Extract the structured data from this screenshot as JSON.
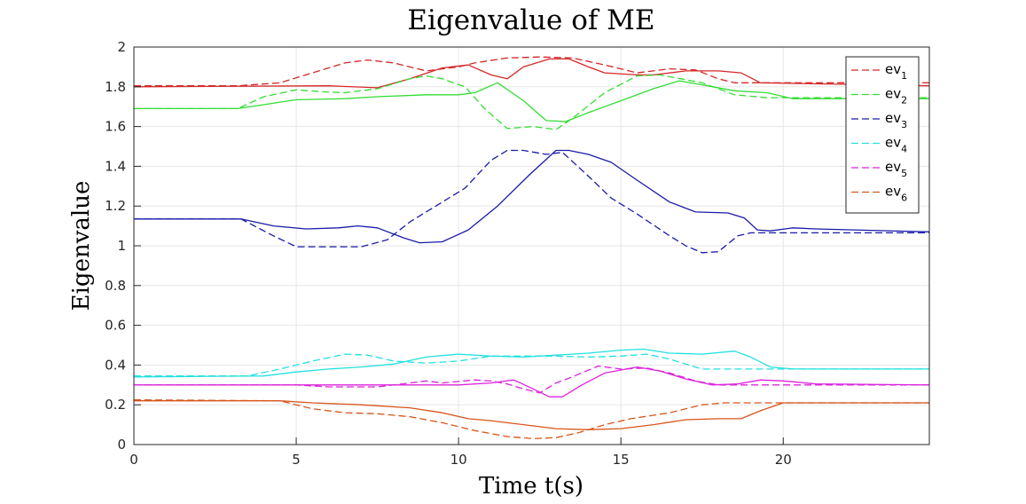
{
  "chart_data": {
    "type": "line",
    "title": "Eigenvalue of ME",
    "xlabel": "Time t(s)",
    "ylabel": "Eigenvalue",
    "xlim": [
      0,
      24.5
    ],
    "ylim": [
      0,
      2
    ],
    "xticks": [
      0,
      5,
      10,
      15,
      20
    ],
    "xtick_labels": [
      "0",
      "5",
      "10",
      "15",
      "20"
    ],
    "yticks": [
      0,
      0.2,
      0.4,
      0.6,
      0.8,
      1,
      1.2,
      1.4,
      1.6,
      1.8,
      2
    ],
    "ytick_labels": [
      "0",
      "0.2",
      "0.4",
      "0.6",
      "0.8",
      "1",
      "1.2",
      "1.4",
      "1.6",
      "1.8",
      "2"
    ],
    "grid": true,
    "legend_position": "top-right",
    "legend": [
      {
        "base": "ev",
        "sub": "1",
        "color": "#d62728"
      },
      {
        "base": "ev",
        "sub": "2",
        "color": "#33dd33"
      },
      {
        "base": "ev",
        "sub": "3",
        "color": "#1a1aaa"
      },
      {
        "base": "ev",
        "sub": "4",
        "color": "#22e0e0"
      },
      {
        "base": "ev",
        "sub": "5",
        "color": "#dd22dd"
      },
      {
        "base": "ev",
        "sub": "6",
        "color": "#d9541a"
      }
    ],
    "series": [
      {
        "legend_index": 0,
        "style": "dashed",
        "color": "#d62728",
        "points": [
          [
            0,
            1.805
          ],
          [
            3.2,
            1.805
          ],
          [
            4.5,
            1.82
          ],
          [
            5.5,
            1.87
          ],
          [
            6.5,
            1.92
          ],
          [
            7.2,
            1.935
          ],
          [
            8,
            1.92
          ],
          [
            9,
            1.88
          ],
          [
            10,
            1.9
          ],
          [
            10.5,
            1.92
          ],
          [
            11.5,
            1.945
          ],
          [
            12.5,
            1.95
          ],
          [
            13.5,
            1.945
          ],
          [
            14.5,
            1.91
          ],
          [
            15.5,
            1.87
          ],
          [
            16.5,
            1.89
          ],
          [
            17.3,
            1.885
          ],
          [
            18,
            1.84
          ],
          [
            18.5,
            1.82
          ],
          [
            24.5,
            1.82
          ]
        ]
      },
      {
        "legend_index": null,
        "style": "solid",
        "color": "#d62728",
        "points": [
          [
            0,
            1.8
          ],
          [
            6,
            1.805
          ],
          [
            7.5,
            1.795
          ],
          [
            8.5,
            1.84
          ],
          [
            9.5,
            1.895
          ],
          [
            10.3,
            1.91
          ],
          [
            11,
            1.86
          ],
          [
            11.5,
            1.84
          ],
          [
            12,
            1.9
          ],
          [
            12.8,
            1.94
          ],
          [
            13.4,
            1.94
          ],
          [
            14,
            1.9
          ],
          [
            14.5,
            1.87
          ],
          [
            15.5,
            1.86
          ],
          [
            16,
            1.86
          ],
          [
            17,
            1.88
          ],
          [
            18,
            1.88
          ],
          [
            18.7,
            1.87
          ],
          [
            19.3,
            1.82
          ],
          [
            24.5,
            1.805
          ]
        ]
      },
      {
        "legend_index": 1,
        "style": "dashed",
        "color": "#33dd33",
        "points": [
          [
            0,
            1.69
          ],
          [
            3.2,
            1.69
          ],
          [
            4,
            1.75
          ],
          [
            5,
            1.785
          ],
          [
            5.8,
            1.775
          ],
          [
            6.5,
            1.77
          ],
          [
            7.5,
            1.79
          ],
          [
            8.5,
            1.84
          ],
          [
            9,
            1.855
          ],
          [
            9.5,
            1.84
          ],
          [
            10.2,
            1.8
          ],
          [
            10.8,
            1.69
          ],
          [
            11.5,
            1.59
          ],
          [
            12.3,
            1.6
          ],
          [
            13,
            1.585
          ],
          [
            13.5,
            1.64
          ],
          [
            14.5,
            1.77
          ],
          [
            15.5,
            1.855
          ],
          [
            16.2,
            1.86
          ],
          [
            17.5,
            1.82
          ],
          [
            18.5,
            1.76
          ],
          [
            19.5,
            1.745
          ],
          [
            24.5,
            1.745
          ]
        ]
      },
      {
        "legend_index": null,
        "style": "solid",
        "color": "#33dd33",
        "points": [
          [
            0,
            1.69
          ],
          [
            3.2,
            1.69
          ],
          [
            5,
            1.735
          ],
          [
            6.5,
            1.74
          ],
          [
            7.5,
            1.75
          ],
          [
            9,
            1.76
          ],
          [
            10,
            1.76
          ],
          [
            10.5,
            1.77
          ],
          [
            11.2,
            1.82
          ],
          [
            12,
            1.73
          ],
          [
            12.7,
            1.63
          ],
          [
            13.3,
            1.625
          ],
          [
            14,
            1.67
          ],
          [
            15,
            1.73
          ],
          [
            16,
            1.79
          ],
          [
            16.8,
            1.83
          ],
          [
            17.5,
            1.81
          ],
          [
            18.5,
            1.78
          ],
          [
            19.5,
            1.77
          ],
          [
            20.3,
            1.74
          ],
          [
            24.5,
            1.74
          ]
        ]
      },
      {
        "legend_index": 2,
        "style": "dashed",
        "color": "#1a1aaa",
        "points": [
          [
            0,
            1.135
          ],
          [
            3.3,
            1.135
          ],
          [
            4.3,
            1.05
          ],
          [
            5,
            0.995
          ],
          [
            6,
            0.995
          ],
          [
            7,
            0.995
          ],
          [
            7.8,
            1.03
          ],
          [
            8.5,
            1.12
          ],
          [
            9.3,
            1.2
          ],
          [
            10.2,
            1.29
          ],
          [
            11,
            1.43
          ],
          [
            11.5,
            1.48
          ],
          [
            12,
            1.48
          ],
          [
            12.7,
            1.46
          ],
          [
            13.2,
            1.47
          ],
          [
            14,
            1.35
          ],
          [
            14.7,
            1.24
          ],
          [
            15.5,
            1.16
          ],
          [
            16.5,
            1.05
          ],
          [
            17,
            1.0
          ],
          [
            17.5,
            0.965
          ],
          [
            18,
            0.97
          ],
          [
            18.6,
            1.05
          ],
          [
            19,
            1.065
          ],
          [
            24.5,
            1.065
          ]
        ]
      },
      {
        "legend_index": null,
        "style": "solid",
        "color": "#1a1aaa",
        "points": [
          [
            0,
            1.135
          ],
          [
            3.3,
            1.135
          ],
          [
            4.3,
            1.1
          ],
          [
            5.3,
            1.085
          ],
          [
            6.3,
            1.09
          ],
          [
            6.9,
            1.1
          ],
          [
            7.5,
            1.09
          ],
          [
            8.3,
            1.04
          ],
          [
            8.8,
            1.015
          ],
          [
            9.5,
            1.02
          ],
          [
            10.3,
            1.08
          ],
          [
            11.2,
            1.2
          ],
          [
            12.2,
            1.36
          ],
          [
            13,
            1.48
          ],
          [
            13.4,
            1.48
          ],
          [
            14,
            1.46
          ],
          [
            14.7,
            1.42
          ],
          [
            15.5,
            1.33
          ],
          [
            16.5,
            1.22
          ],
          [
            17.3,
            1.17
          ],
          [
            18.3,
            1.165
          ],
          [
            18.8,
            1.14
          ],
          [
            19.2,
            1.08
          ],
          [
            19.6,
            1.075
          ],
          [
            20.3,
            1.09
          ],
          [
            21,
            1.085
          ],
          [
            24.5,
            1.07
          ]
        ]
      },
      {
        "legend_index": 3,
        "style": "dashed",
        "color": "#22e0e0",
        "points": [
          [
            0,
            0.345
          ],
          [
            3.5,
            0.345
          ],
          [
            4.5,
            0.38
          ],
          [
            5.5,
            0.42
          ],
          [
            6.5,
            0.455
          ],
          [
            7.2,
            0.45
          ],
          [
            8,
            0.42
          ],
          [
            9,
            0.41
          ],
          [
            10,
            0.42
          ],
          [
            11,
            0.445
          ],
          [
            12,
            0.445
          ],
          [
            13,
            0.445
          ],
          [
            14,
            0.44
          ],
          [
            15,
            0.445
          ],
          [
            15.8,
            0.455
          ],
          [
            16.5,
            0.43
          ],
          [
            17.5,
            0.38
          ],
          [
            18.5,
            0.38
          ],
          [
            24.5,
            0.38
          ]
        ]
      },
      {
        "legend_index": null,
        "style": "solid",
        "color": "#22e0e0",
        "points": [
          [
            0,
            0.34
          ],
          [
            4,
            0.345
          ],
          [
            5,
            0.365
          ],
          [
            6,
            0.38
          ],
          [
            7,
            0.39
          ],
          [
            8,
            0.405
          ],
          [
            9,
            0.44
          ],
          [
            10,
            0.455
          ],
          [
            11,
            0.445
          ],
          [
            12,
            0.44
          ],
          [
            13,
            0.45
          ],
          [
            14,
            0.46
          ],
          [
            15,
            0.475
          ],
          [
            15.7,
            0.48
          ],
          [
            16.5,
            0.46
          ],
          [
            17.5,
            0.455
          ],
          [
            18.5,
            0.47
          ],
          [
            19,
            0.44
          ],
          [
            19.6,
            0.39
          ],
          [
            20.3,
            0.38
          ],
          [
            24.5,
            0.38
          ]
        ]
      },
      {
        "legend_index": 4,
        "style": "dashed",
        "color": "#dd22dd",
        "points": [
          [
            0,
            0.3
          ],
          [
            5,
            0.3
          ],
          [
            6,
            0.29
          ],
          [
            7.5,
            0.29
          ],
          [
            8.5,
            0.31
          ],
          [
            9,
            0.32
          ],
          [
            9.5,
            0.31
          ],
          [
            10.5,
            0.325
          ],
          [
            11,
            0.32
          ],
          [
            11.5,
            0.305
          ],
          [
            12,
            0.28
          ],
          [
            12.5,
            0.26
          ],
          [
            13,
            0.31
          ],
          [
            13.5,
            0.34
          ],
          [
            14.3,
            0.395
          ],
          [
            15,
            0.38
          ],
          [
            15.8,
            0.385
          ],
          [
            16.5,
            0.36
          ],
          [
            17.3,
            0.32
          ],
          [
            18,
            0.3
          ],
          [
            24.5,
            0.3
          ]
        ]
      },
      {
        "legend_index": null,
        "style": "solid",
        "color": "#dd22dd",
        "points": [
          [
            0,
            0.3
          ],
          [
            10,
            0.3
          ],
          [
            11,
            0.31
          ],
          [
            11.7,
            0.325
          ],
          [
            12.3,
            0.28
          ],
          [
            12.8,
            0.24
          ],
          [
            13.2,
            0.24
          ],
          [
            13.8,
            0.3
          ],
          [
            14.5,
            0.36
          ],
          [
            15.5,
            0.39
          ],
          [
            16.2,
            0.37
          ],
          [
            17,
            0.33
          ],
          [
            17.8,
            0.3
          ],
          [
            18.6,
            0.305
          ],
          [
            19.3,
            0.325
          ],
          [
            20,
            0.32
          ],
          [
            21,
            0.305
          ],
          [
            24.5,
            0.3
          ]
        ]
      },
      {
        "legend_index": 5,
        "style": "dashed",
        "color": "#d9541a",
        "points": [
          [
            0,
            0.225
          ],
          [
            4.5,
            0.22
          ],
          [
            5.5,
            0.18
          ],
          [
            6.5,
            0.16
          ],
          [
            7.5,
            0.155
          ],
          [
            8.5,
            0.14
          ],
          [
            9.5,
            0.11
          ],
          [
            10.5,
            0.07
          ],
          [
            11.5,
            0.04
          ],
          [
            12.3,
            0.03
          ],
          [
            13,
            0.035
          ],
          [
            13.7,
            0.06
          ],
          [
            14.5,
            0.1
          ],
          [
            15.3,
            0.13
          ],
          [
            16.5,
            0.16
          ],
          [
            17.5,
            0.2
          ],
          [
            18.2,
            0.21
          ],
          [
            24.5,
            0.21
          ]
        ]
      },
      {
        "legend_index": null,
        "style": "solid",
        "color": "#d9541a",
        "points": [
          [
            0,
            0.22
          ],
          [
            4.5,
            0.22
          ],
          [
            5.5,
            0.21
          ],
          [
            7,
            0.2
          ],
          [
            8.5,
            0.185
          ],
          [
            9.5,
            0.16
          ],
          [
            10.3,
            0.13
          ],
          [
            11,
            0.12
          ],
          [
            12,
            0.1
          ],
          [
            13,
            0.08
          ],
          [
            14,
            0.075
          ],
          [
            15,
            0.08
          ],
          [
            16,
            0.1
          ],
          [
            17,
            0.125
          ],
          [
            18,
            0.13
          ],
          [
            18.7,
            0.13
          ],
          [
            19.3,
            0.17
          ],
          [
            20,
            0.21
          ],
          [
            24.5,
            0.21
          ]
        ]
      }
    ]
  }
}
